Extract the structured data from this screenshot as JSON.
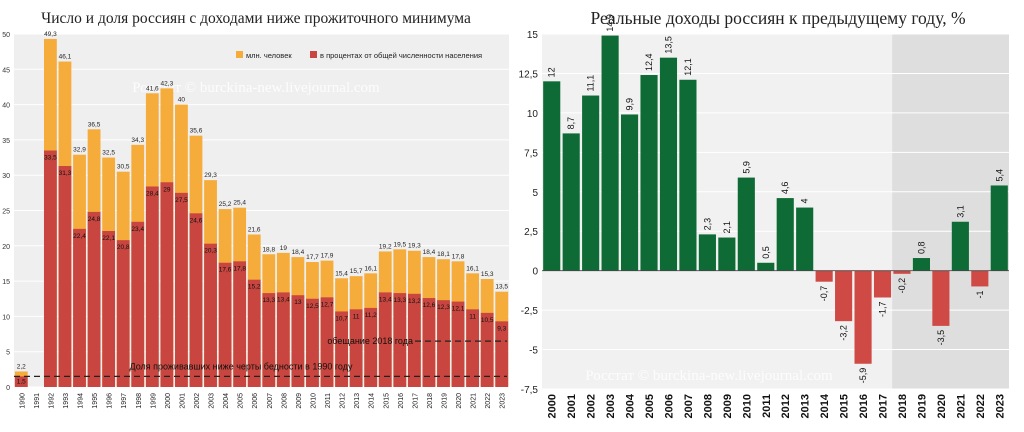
{
  "chart_data": [
    {
      "type": "bar",
      "title": "Число и доля россиян с доходами ниже прожиточного минимума",
      "watermark": "Росстат © burckina-new.livejournal.com",
      "categories": [
        "1990",
        "1991",
        "1992",
        "1993",
        "1994",
        "1995",
        "1996",
        "1997",
        "1998",
        "1999",
        "2000",
        "2001",
        "2002",
        "2003",
        "2004",
        "2005",
        "2006",
        "2007",
        "2008",
        "2009",
        "2010",
        "2011",
        "2012",
        "2013",
        "2014",
        "2015",
        "2016",
        "2017",
        "2018",
        "2019",
        "2020",
        "2021",
        "2022",
        "2023"
      ],
      "series": [
        {
          "name": "млн. человек",
          "color": "#f5ac3a",
          "values": [
            2.2,
            null,
            49.3,
            46.1,
            32.9,
            36.5,
            32.5,
            30.5,
            34.3,
            41.6,
            42.3,
            40,
            35.6,
            29.3,
            25.2,
            25.4,
            21.6,
            18.8,
            19,
            18.4,
            17.7,
            17.9,
            15.4,
            15.7,
            16.1,
            19.2,
            19.5,
            19.3,
            18.4,
            18.1,
            17.8,
            16.1,
            15.3,
            13.5
          ],
          "labels": [
            "2,2",
            "",
            "49,3",
            "46,1",
            "32,9",
            "36,5",
            "32,5",
            "30,5",
            "34,3",
            "41,6",
            "42,3",
            "40",
            "35,6",
            "29,3",
            "25,2",
            "25,4",
            "21,6",
            "18,8",
            "19",
            "18,4",
            "17,7",
            "17,9",
            "15,4",
            "15,7",
            "16,1",
            "19,2",
            "19,5",
            "19,3",
            "18,4",
            "18,1",
            "17,8",
            "16,1",
            "15,3",
            "13,5"
          ]
        },
        {
          "name": "в процентах от общей численности населения",
          "color": "#c8463f",
          "values": [
            1.5,
            null,
            33.5,
            31.3,
            22.4,
            24.8,
            22.1,
            20.8,
            23.4,
            28.4,
            29,
            27.5,
            24.6,
            20.3,
            17.6,
            17.8,
            15.2,
            13.3,
            13.4,
            13,
            12.5,
            12.7,
            10.7,
            11,
            11.2,
            13.4,
            13.3,
            13.2,
            12.6,
            12.3,
            12.1,
            11,
            10.5,
            9.3
          ],
          "labels": [
            "1,5",
            "",
            "33,5",
            "31,3",
            "22,4",
            "24,8",
            "22,1",
            "20,8",
            "23,4",
            "28,4",
            "29",
            "27,5",
            "24,6",
            "20,3",
            "17,6",
            "17,8",
            "15,2",
            "13,3",
            "13,4",
            "13",
            "12,5",
            "12,7",
            "10,7",
            "11",
            "11,2",
            "13,4",
            "13,3",
            "13,2",
            "12,6",
            "12,3",
            "12,1",
            "11",
            "10,5",
            "9,3"
          ]
        }
      ],
      "ylim": [
        0,
        50
      ],
      "yticks": [
        0,
        5,
        10,
        15,
        20,
        25,
        30,
        35,
        40,
        45,
        50
      ],
      "ytick_labels": [
        "0",
        "5",
        "10",
        "15",
        "20",
        "25",
        "30",
        "35",
        "40",
        "45",
        "50"
      ],
      "legend_position": "top-right",
      "grid": true,
      "annotations": [
        {
          "text": "обещание 2018 года",
          "y": 6.5
        },
        {
          "text": "Доля проживавших ниже черты бедности в 1990 году",
          "y": 1.5
        }
      ]
    },
    {
      "type": "bar",
      "title": "Реальные доходы россиян к предыдущему году, %",
      "watermark": "Росстат © burckina-new.livejournal.com",
      "categories": [
        "2000",
        "2001",
        "2002",
        "2003",
        "2004",
        "2005",
        "2006",
        "2007",
        "2008",
        "2009",
        "2010",
        "2011",
        "2012",
        "2013",
        "2014",
        "2015",
        "2016",
        "2017",
        "2018",
        "2019",
        "2020",
        "2021",
        "2022",
        "2023"
      ],
      "values": [
        12,
        8.7,
        11.1,
        14.9,
        9.9,
        12.4,
        13.5,
        12.1,
        2.3,
        2.1,
        5.9,
        0.5,
        4.6,
        4,
        -0.7,
        -3.2,
        -5.9,
        -1.7,
        -0.2,
        0.8,
        -3.5,
        3.1,
        -1,
        5.4
      ],
      "labels": [
        "12",
        "8,7",
        "11,1",
        "14,9",
        "9,9",
        "12,4",
        "13,5",
        "12,1",
        "2,3",
        "2,1",
        "5,9",
        "0,5",
        "4,6",
        "4",
        "-0,7",
        "-3,2",
        "-5,9",
        "-1,7",
        "-0,2",
        "0,8",
        "-3,5",
        "3,1",
        "-1",
        "5,4"
      ],
      "positive_color": "#0e6b35",
      "negative_color": "#d04a45",
      "ylim": [
        -7.5,
        15
      ],
      "yticks": [
        -7.5,
        -5,
        -2.5,
        0,
        2.5,
        5,
        7.5,
        10,
        12.5,
        15
      ],
      "ytick_labels": [
        "-7,5",
        "-5",
        "-2,5",
        "0",
        "2,5",
        "5",
        "7,5",
        "10",
        "12,5",
        "15"
      ],
      "grid": true,
      "shaded_period_start": "2018"
    }
  ]
}
